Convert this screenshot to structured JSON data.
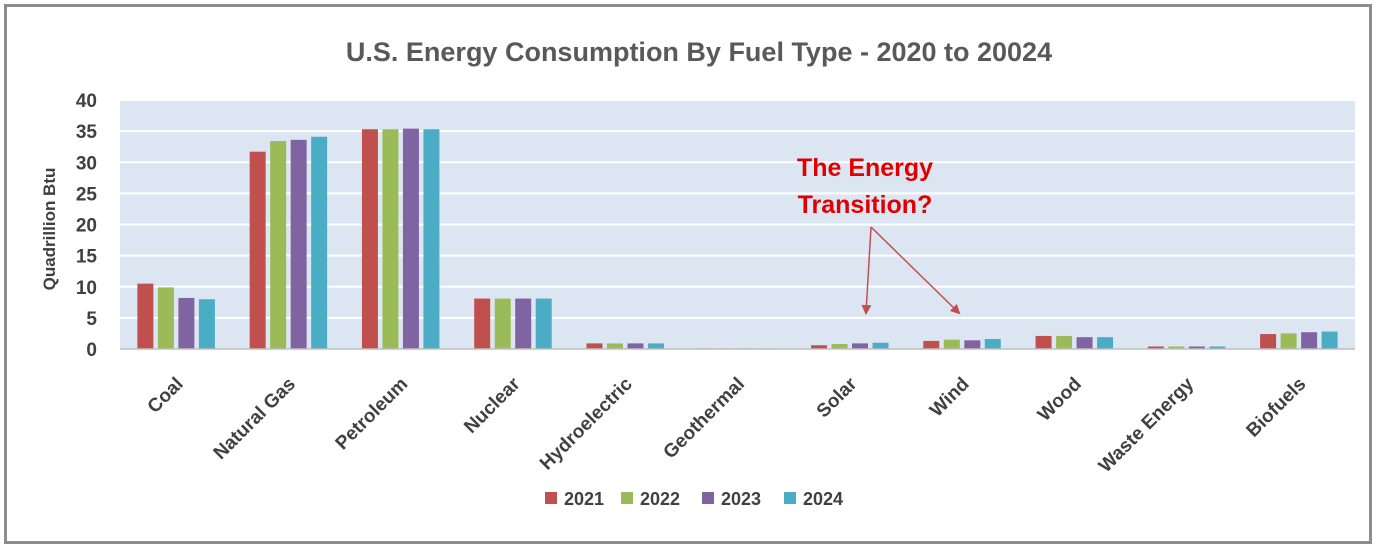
{
  "chart_data": {
    "type": "bar",
    "title": "U.S. Energy Consumption By Fuel Type - 2020 to 20024",
    "ylabel": "Quadrillion Btu",
    "xlabel": "",
    "ylim": [
      0,
      40
    ],
    "yticks": [
      "0",
      "5",
      "10",
      "15",
      "20",
      "25",
      "30",
      "35",
      "40"
    ],
    "grid": true,
    "legend_position": "bottom",
    "categories": [
      "Coal",
      "Natural Gas",
      "Petroleum",
      "Nuclear",
      "Hydroelectric",
      "Geothermal",
      "Solar",
      "Wind",
      "Wood",
      "Waste Energy",
      "Biofuels"
    ],
    "series": [
      {
        "name": "2021",
        "color": "#c0504d",
        "values": [
          10.5,
          31.7,
          35.3,
          8.1,
          0.9,
          0.1,
          0.6,
          1.3,
          2.1,
          0.4,
          2.4
        ]
      },
      {
        "name": "2022",
        "color": "#9bbb59",
        "values": [
          9.9,
          33.4,
          35.3,
          8.1,
          0.9,
          0.1,
          0.8,
          1.5,
          2.1,
          0.4,
          2.5
        ]
      },
      {
        "name": "2023",
        "color": "#8064a2",
        "values": [
          8.2,
          33.6,
          35.4,
          8.1,
          0.9,
          0.1,
          0.9,
          1.4,
          1.9,
          0.4,
          2.7
        ]
      },
      {
        "name": "2024",
        "color": "#4bacc6",
        "values": [
          8.0,
          34.1,
          35.3,
          8.1,
          0.9,
          0.1,
          1.0,
          1.6,
          1.9,
          0.4,
          2.8
        ]
      }
    ],
    "annotation": {
      "lines": [
        "The Energy",
        "Transition?"
      ],
      "color": "#e00000",
      "arrow_targets": [
        "Solar",
        "Wind"
      ]
    },
    "colors": {
      "plot_background": "#dce6f2",
      "grid": "#ffffff",
      "arrow": "#c0504d",
      "frame": "#8c8c8c"
    }
  }
}
